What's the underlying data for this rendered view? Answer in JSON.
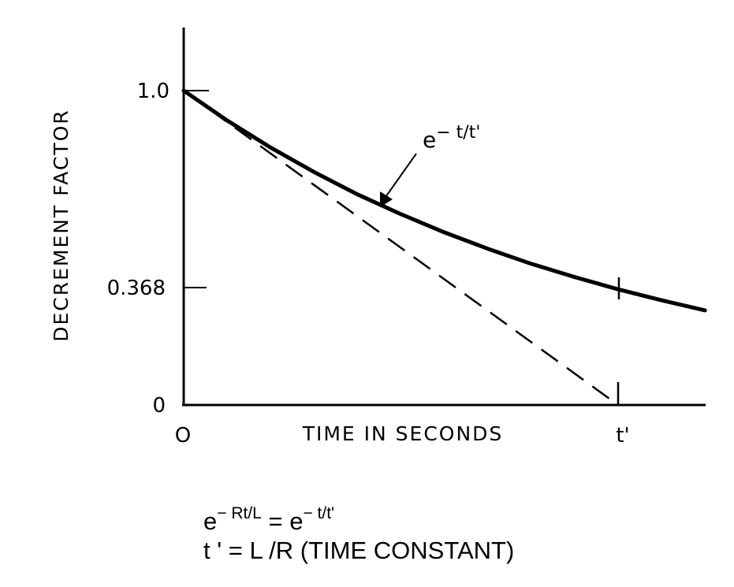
{
  "chart_data": {
    "type": "line",
    "ylabel": "DECREMENT FACTOR",
    "xlabel": "TIME IN SECONDS",
    "x_ticks": [
      {
        "value": 0,
        "label": "O"
      },
      {
        "value": 1,
        "label": "t'"
      }
    ],
    "y_ticks": [
      {
        "value": 1.0,
        "label": "1.0"
      },
      {
        "value": 0.368,
        "label": "0.368"
      },
      {
        "value": 0,
        "label": "0"
      }
    ],
    "xlim": [
      0,
      1.21
    ],
    "ylim": [
      0,
      1.2
    ],
    "grid": false,
    "series": [
      {
        "name": "e−t/t'",
        "style": "solid",
        "x": [
          0,
          0.1,
          0.2,
          0.3,
          0.4,
          0.5,
          0.6,
          0.7,
          0.8,
          0.9,
          1.0,
          1.1,
          1.2
        ],
        "y": [
          1.0,
          0.905,
          0.819,
          0.741,
          0.67,
          0.607,
          0.549,
          0.497,
          0.449,
          0.407,
          0.368,
          0.333,
          0.301
        ]
      },
      {
        "style": "dashed",
        "x": [
          0,
          1.0
        ],
        "y": [
          1.0,
          0
        ]
      }
    ],
    "annotations": [
      {
        "label_parts": [
          "e",
          "− t/t'"
        ],
        "points_to_x": 0.45
      }
    ]
  },
  "formulas": {
    "line1": {
      "base1": "e",
      "exp1": "− Rt/L",
      "eq": " = e",
      "exp2": "− t/t'"
    },
    "line2": "t ' = L /R (TIME CONSTANT)"
  },
  "colors": {
    "ink": "#000000",
    "background": "#ffffff"
  }
}
